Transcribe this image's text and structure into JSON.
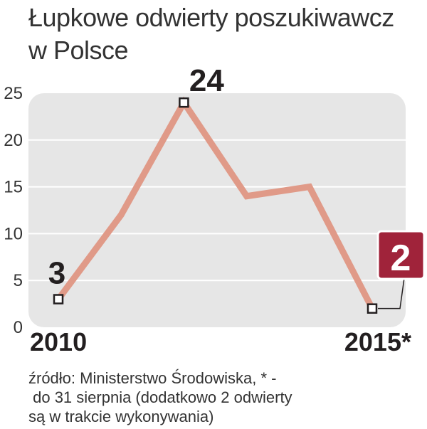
{
  "title_lines": [
    "Łupkowe odwierty poszukiwawcz",
    "w Polsce"
  ],
  "source_lines": [
    "źródło: Ministerstwo Środowiska, * -",
    " do 31 sierpnia (dodatkowo 2 odwierty",
    "są w trakcie wykonywania)"
  ],
  "colors": {
    "line": "#e09a88",
    "plot_bg": "#e6e6e6",
    "grid": "#ffffff",
    "badge": "#a0233a",
    "marker_fill": "#ffffff",
    "marker_stroke": "#231f20"
  },
  "chart_data": {
    "type": "line",
    "x": [
      2010,
      2011,
      2012,
      2013,
      2014,
      2015
    ],
    "series": [
      {
        "values": [
          3,
          12,
          24,
          14,
          15,
          2
        ]
      }
    ],
    "x_tick_labels": [
      {
        "x": 2010,
        "label": "2010"
      },
      {
        "x": 2015,
        "label": "2015*"
      }
    ],
    "y_ticks": [
      "0",
      "5",
      "10",
      "15",
      "20",
      "25"
    ],
    "ylim": [
      0,
      25
    ],
    "grid": true,
    "data_labels": [
      {
        "x": 2010,
        "label": "3",
        "style": "plain"
      },
      {
        "x": 2012,
        "label": "24",
        "style": "plain"
      },
      {
        "x": 2015,
        "label": "2",
        "style": "badge"
      }
    ],
    "markers_at": [
      2010,
      2012,
      2015
    ]
  }
}
